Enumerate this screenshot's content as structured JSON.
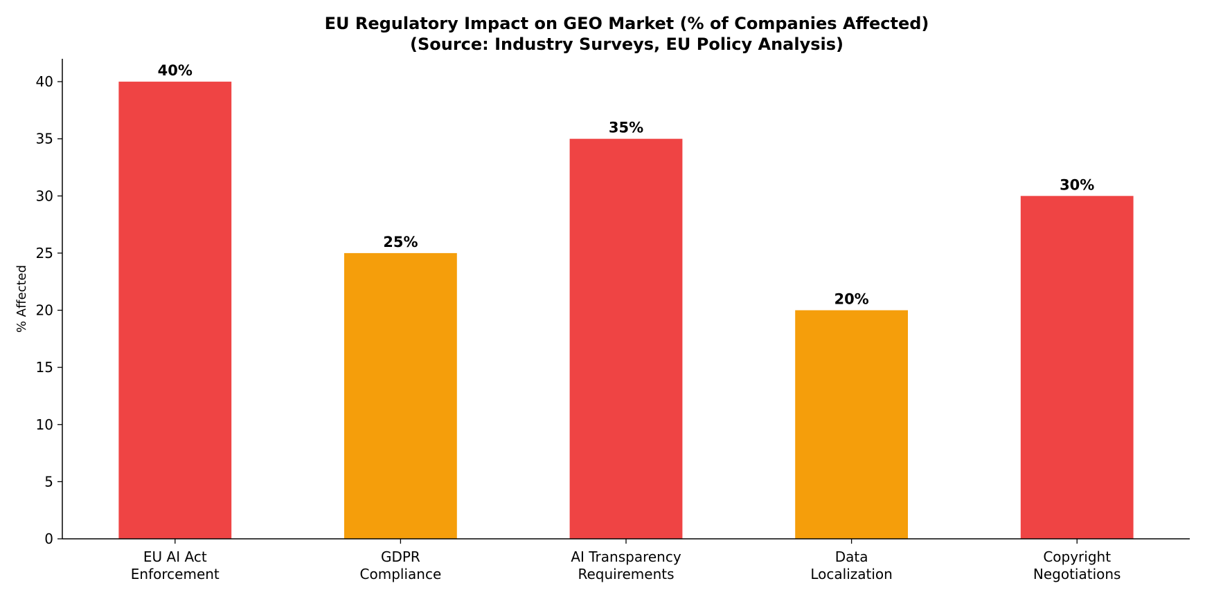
{
  "chart_data": {
    "type": "bar",
    "title": "EU Regulatory Impact on GEO Market (% of Companies Affected)",
    "subtitle": "(Source: Industry Surveys, EU Policy Analysis)",
    "xlabel": "",
    "ylabel": "% Affected",
    "categories": [
      [
        "EU AI Act",
        "Enforcement"
      ],
      [
        "GDPR",
        "Compliance"
      ],
      [
        "AI Transparency",
        "Requirements"
      ],
      [
        "Data",
        "Localization"
      ],
      [
        "Copyright",
        "Negotiations"
      ]
    ],
    "values": [
      40,
      25,
      35,
      20,
      30
    ],
    "value_labels": [
      "40%",
      "25%",
      "35%",
      "20%",
      "30%"
    ],
    "bar_colors": [
      "#ef4444",
      "#f59e0b",
      "#ef4444",
      "#f59e0b",
      "#ef4444"
    ],
    "ylim": [
      0,
      42
    ],
    "yticks": [
      0,
      5,
      10,
      15,
      20,
      25,
      30,
      35,
      40
    ],
    "grid": false,
    "legend": "none"
  }
}
